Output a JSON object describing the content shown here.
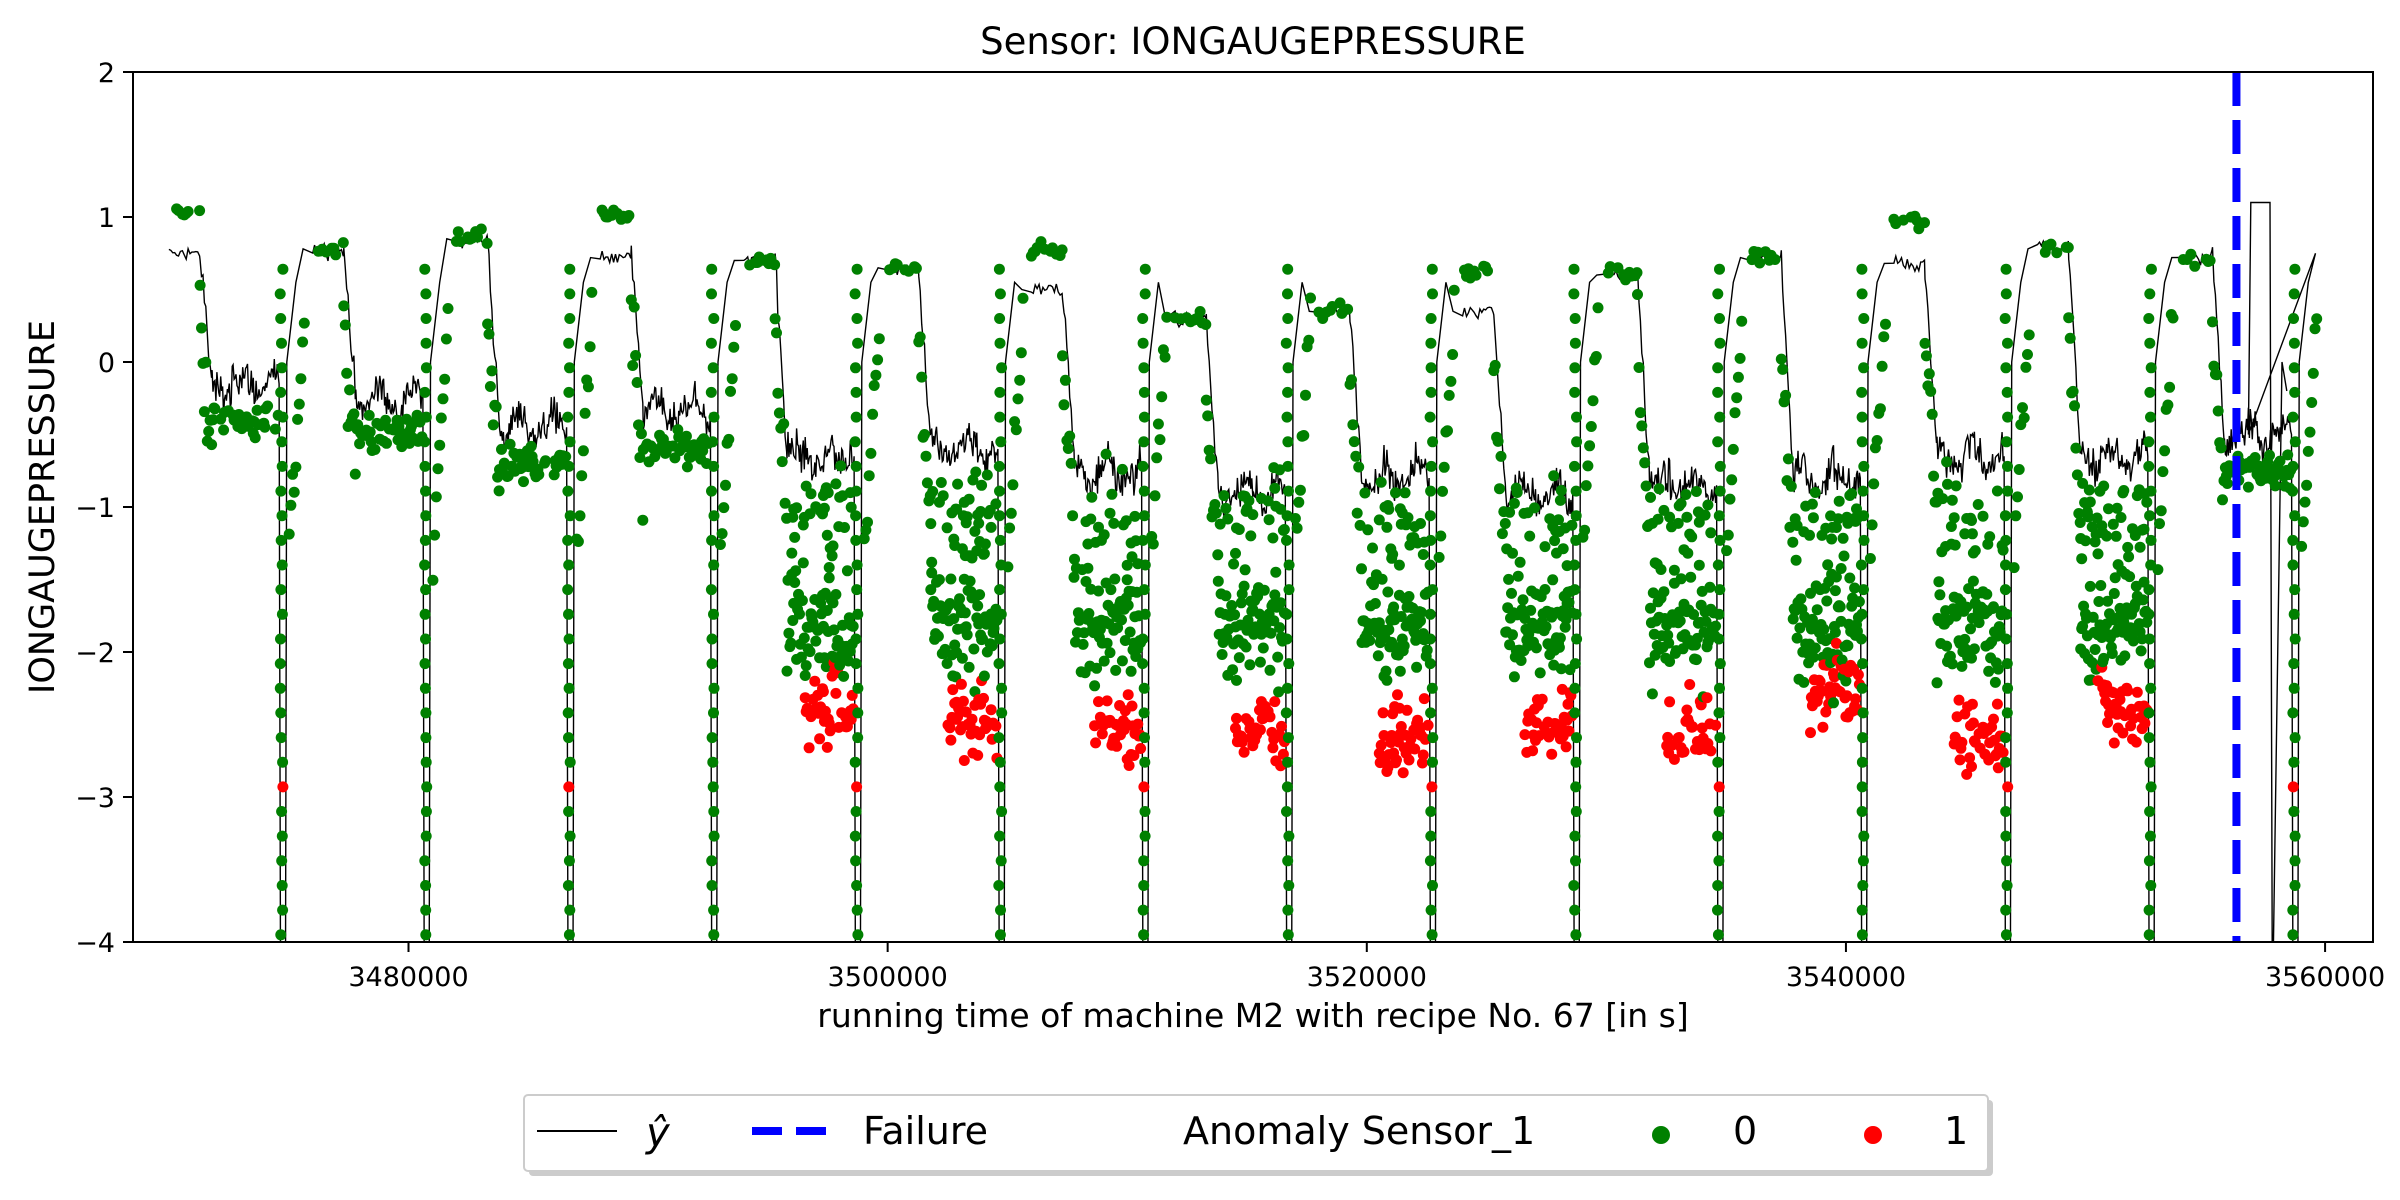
{
  "chart_data": {
    "type": "scatter",
    "title": "Sensor: IONGAUGEPRESSURE",
    "xlabel": "running time of machine M2 with recipe No. 67 [in s]",
    "ylabel": "IONGAUGEPRESSURE",
    "xlim": [
      3468500,
      3562000
    ],
    "ylim": [
      -4,
      2
    ],
    "x_ticks": [
      3480000,
      3500000,
      3520000,
      3540000,
      3560000
    ],
    "y_ticks": [
      2,
      1,
      0,
      -1,
      -2,
      -3,
      -4
    ],
    "x_tick_labels": [
      "3480000",
      "3500000",
      "3520000",
      "3540000",
      "3560000"
    ],
    "y_tick_labels": [
      "2",
      "1",
      "0",
      "−1",
      "−2",
      "−3",
      "−4"
    ],
    "grid": false,
    "legend_position": "bottom-center",
    "failure_x": 3556300,
    "colors": {
      "prediction_line": "#000000",
      "failure_line": "#0000ff",
      "anomaly_0": "#008000",
      "anomaly_1": "#ff0000"
    },
    "cycles": [
      3470000,
      3476000,
      3482000,
      3488000,
      3494000,
      3500000,
      3506000,
      3512000,
      3518000,
      3524000,
      3530000,
      3536000,
      3542000,
      3548000,
      3554000
    ],
    "cycle_plateau_levels": [
      0.75,
      0.78,
      0.85,
      0.72,
      0.7,
      0.65,
      0.5,
      0.3,
      0.35,
      0.35,
      0.6,
      0.72,
      0.68,
      0.78,
      0.72
    ],
    "cycle_baseline_levels": [
      -0.15,
      -0.25,
      -0.45,
      -0.35,
      -0.65,
      -0.6,
      -0.75,
      -0.9,
      -0.8,
      -0.9,
      -0.85,
      -0.8,
      -0.65,
      -0.65,
      -0.5
    ],
    "cycle_anomaly_centers": [
      null,
      null,
      null,
      null,
      -2.4,
      -2.5,
      -2.5,
      -2.55,
      -2.6,
      -2.5,
      -2.5,
      -2.3,
      -2.55,
      -2.4,
      null
    ],
    "series": [
      {
        "name": "ŷ",
        "kind": "line"
      },
      {
        "name": "Failure",
        "kind": "vline"
      },
      {
        "name": "0",
        "kind": "scatter"
      },
      {
        "name": "1",
        "kind": "scatter"
      }
    ],
    "legend": {
      "prediction_label": "ŷ",
      "failure_label": "Failure",
      "anomaly_title": "Anomaly Sensor_1",
      "class_0_label": "0",
      "class_1_label": "1"
    }
  }
}
